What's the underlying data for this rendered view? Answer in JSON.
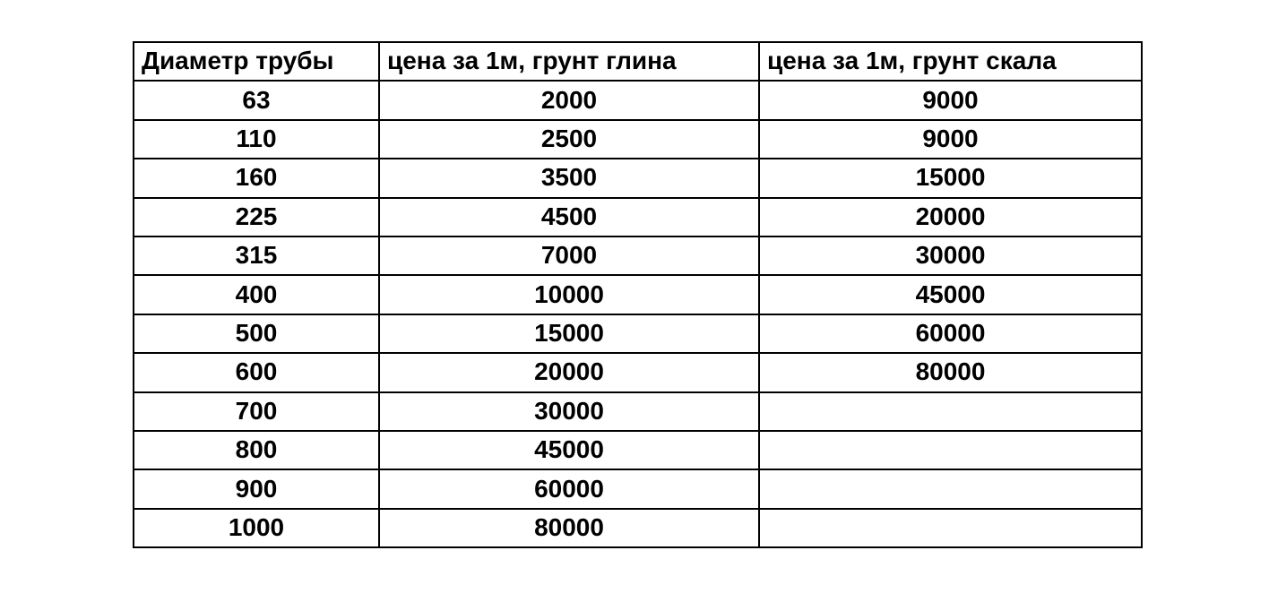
{
  "chart_data": {
    "type": "table",
    "columns": [
      "Диаметр трубы",
      "цена за 1м, грунт глина",
      "цена за 1м, грунт скала"
    ],
    "rows": [
      [
        "63",
        "2000",
        "9000"
      ],
      [
        "110",
        "2500",
        "9000"
      ],
      [
        "160",
        "3500",
        "15000"
      ],
      [
        "225",
        "4500",
        "20000"
      ],
      [
        "315",
        "7000",
        "30000"
      ],
      [
        "400",
        "10000",
        "45000"
      ],
      [
        "500",
        "15000",
        "60000"
      ],
      [
        "600",
        "20000",
        "80000"
      ],
      [
        "700",
        "30000",
        ""
      ],
      [
        "800",
        "45000",
        ""
      ],
      [
        "900",
        "60000",
        ""
      ],
      [
        "1000",
        "80000",
        ""
      ]
    ],
    "layout": {
      "grid": "on",
      "header_align": "left",
      "cell_align": "center"
    }
  },
  "colors": {
    "text": "#000000",
    "border": "#000000",
    "background": "#ffffff"
  }
}
